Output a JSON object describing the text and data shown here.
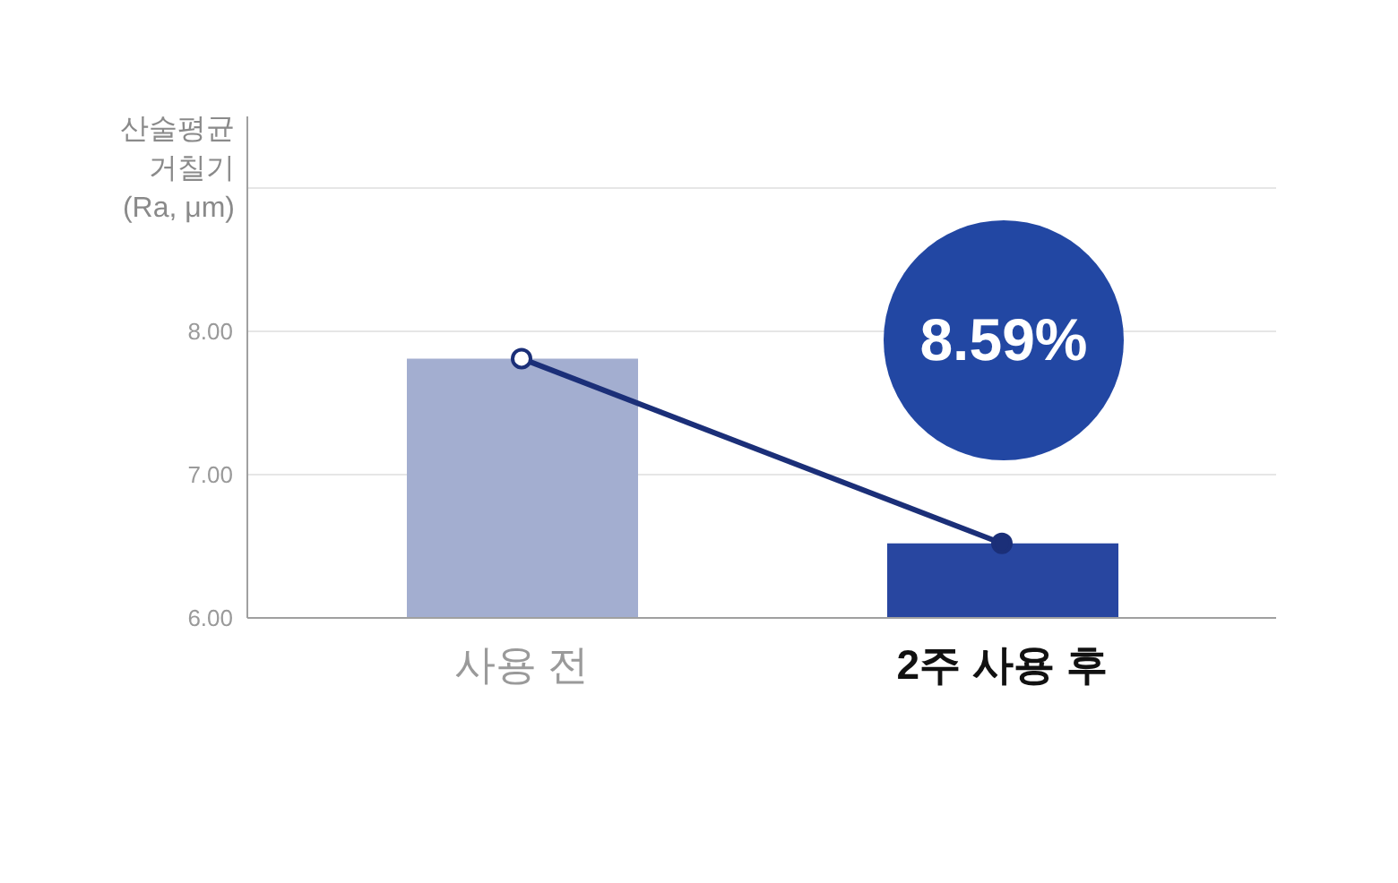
{
  "chart_data": {
    "type": "bar",
    "ylabel": "산술평균\n거칠기\n(Ra, μm)",
    "categories": [
      "사용 전",
      "2주 사용 후"
    ],
    "series": [
      {
        "colors": [
          "#a3aed0",
          "#2846a0"
        ],
        "values": [
          7.81,
          6.52
        ]
      },
      {
        "type": "line",
        "color": "#1b2f78",
        "values": [
          7.81,
          6.52
        ]
      }
    ],
    "ylim": [
      6,
      9.5
    ],
    "yticks": [
      {
        "value": 6,
        "label": "6.00"
      },
      {
        "value": 7,
        "label": "7.00"
      },
      {
        "value": 8,
        "label": "8.00"
      },
      {
        "value": 9,
        "label": null
      }
    ],
    "grid": "y",
    "marker": "circle",
    "annotations": [
      "8.59%"
    ]
  }
}
